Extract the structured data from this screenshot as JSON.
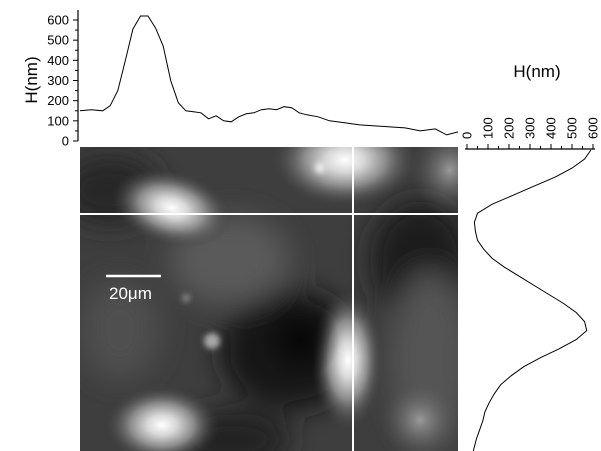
{
  "chart_data": [
    {
      "type": "line",
      "panel": "horizontal height profile",
      "xlabel": "",
      "ylabel": "H(nm)",
      "ylim": [
        0,
        650
      ],
      "yticks": [
        0,
        100,
        200,
        300,
        400,
        500,
        600
      ],
      "x": [
        0,
        3,
        6,
        8,
        10,
        12,
        14,
        16,
        18,
        20,
        22,
        24,
        26,
        28,
        30,
        32,
        34,
        36,
        38,
        40,
        42,
        44,
        46,
        48,
        50,
        52,
        54,
        56,
        58,
        60,
        63,
        66,
        70,
        74,
        78,
        82,
        86,
        90,
        94,
        97,
        100
      ],
      "values": [
        150,
        155,
        150,
        175,
        250,
        400,
        555,
        620,
        620,
        560,
        470,
        300,
        190,
        150,
        145,
        140,
        110,
        125,
        100,
        95,
        120,
        135,
        140,
        155,
        160,
        155,
        170,
        165,
        140,
        130,
        120,
        100,
        90,
        80,
        75,
        70,
        65,
        50,
        60,
        30,
        45
      ]
    },
    {
      "type": "line",
      "panel": "vertical height profile",
      "orientation": "vertical",
      "xlabel": "H(nm)",
      "xlim": [
        0,
        650
      ],
      "xticks": [
        0,
        100,
        200,
        300,
        400,
        500,
        600
      ],
      "y": [
        0,
        3,
        6,
        9,
        12,
        15,
        18,
        21,
        24,
        27,
        30,
        33,
        36,
        39,
        42,
        45,
        48,
        51,
        54,
        57,
        60,
        63,
        66,
        69,
        72,
        75,
        78,
        81,
        84,
        87,
        90,
        93,
        96,
        100
      ],
      "values": [
        590,
        560,
        500,
        420,
        320,
        220,
        120,
        50,
        35,
        40,
        50,
        80,
        120,
        180,
        250,
        320,
        390,
        460,
        520,
        560,
        570,
        520,
        440,
        350,
        270,
        210,
        160,
        130,
        105,
        85,
        75,
        60,
        45,
        30
      ]
    }
  ],
  "image": {
    "scale_bar_label": "20μm",
    "map_colors": [
      "#000000",
      "#ffffff"
    ],
    "crosshair_color": "#ffffff"
  }
}
